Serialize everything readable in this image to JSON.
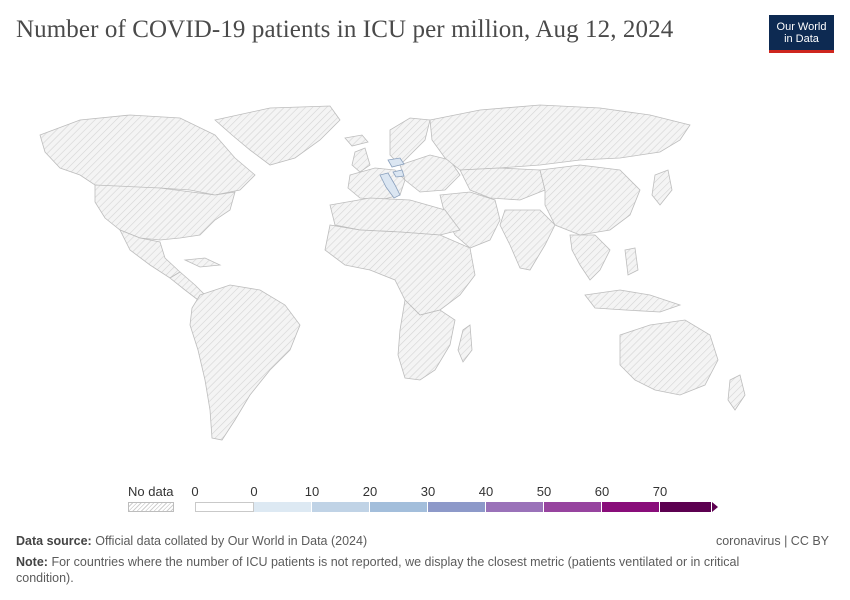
{
  "header": {
    "title": "Number of COVID-19 patients in ICU per million, Aug 12, 2024"
  },
  "logo": {
    "line1": "Our World",
    "line2": "in Data"
  },
  "map": {
    "no_data_color": "#e8e8e8",
    "highlight_color": "#dbe6f2"
  },
  "legend": {
    "no_data_label": "No data",
    "ticks": [
      "0",
      "0",
      "10",
      "20",
      "30",
      "40",
      "50",
      "60",
      "70"
    ],
    "bins": [
      {
        "color": "#ffffff"
      },
      {
        "color": "#dde9f3"
      },
      {
        "color": "#c0d3e6"
      },
      {
        "color": "#a3bedb"
      },
      {
        "color": "#8d99c9"
      },
      {
        "color": "#9a72b9"
      },
      {
        "color": "#97449f"
      },
      {
        "color": "#890d7a"
      },
      {
        "color": "#5c0050"
      }
    ]
  },
  "footer": {
    "source_label": "Data source:",
    "source_text": "Official data collated by Our World in Data (2024)",
    "license": "coronavirus | CC BY",
    "note_label": "Note:",
    "note_text": "For countries where the number of ICU patients is not reported, we display the closest metric (patients ventilated or in critical condition)."
  }
}
